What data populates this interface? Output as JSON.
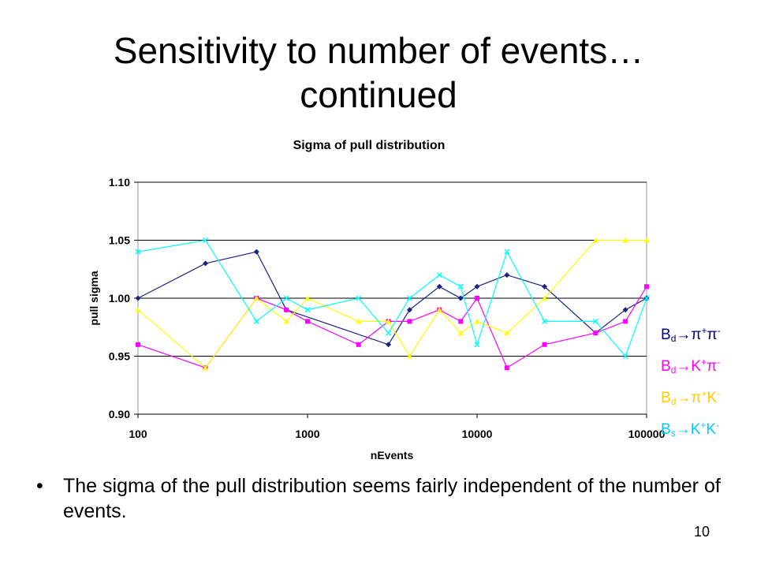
{
  "slide": {
    "title_line1": "Sensitivity to number of events…",
    "title_line2": "continued",
    "bullet": "The sigma of the pull distribution seems fairly independent of the number of events.",
    "bullet_marker": "•",
    "page_number": "10"
  },
  "legend": [
    {
      "particle": "B",
      "sub": "d",
      "arrow": "→",
      "decay": [
        {
          "t": "π",
          "sup": "+"
        },
        {
          "t": "π",
          "sup": "-"
        }
      ],
      "color": "#000080"
    },
    {
      "particle": "B",
      "sub": "d",
      "arrow": "→",
      "decay": [
        {
          "t": "K",
          "sup": "+"
        },
        {
          "t": "π",
          "sup": "-"
        }
      ],
      "color": "#ff00ff"
    },
    {
      "particle": "B",
      "sub": "d",
      "arrow": "→",
      "decay": [
        {
          "t": "π",
          "sup": "+"
        },
        {
          "t": "K",
          "sup": "-"
        }
      ],
      "color": "#ffcc00"
    },
    {
      "particle": "B",
      "sub": "s",
      "arrow": "→",
      "decay": [
        {
          "t": "K",
          "sup": "+"
        },
        {
          "t": "K",
          "sup": "-"
        }
      ],
      "color": "#00ccff"
    }
  ],
  "chart_data": {
    "type": "line",
    "title": "Sigma of pull distribution",
    "xlabel": "nEvents",
    "ylabel": "pull sigma",
    "xscale": "log",
    "xlim": [
      100,
      100000
    ],
    "ylim": [
      0.9,
      1.1
    ],
    "x_ticks": [
      "100",
      "1000",
      "10000",
      "100000"
    ],
    "y_ticks": [
      "0.90",
      "0.95",
      "1.00",
      "1.05",
      "1.10"
    ],
    "grid": "horizontal",
    "legend_position": "right",
    "series": [
      {
        "color": "#1a237e",
        "marker": "diamond",
        "x": [
          100,
          250,
          500,
          750,
          3000,
          4000,
          6000,
          8000,
          10000,
          15000,
          25000,
          50000,
          75000,
          100000
        ],
        "y": [
          1.0,
          1.03,
          1.04,
          0.99,
          0.96,
          0.99,
          1.01,
          1.0,
          1.01,
          1.02,
          1.01,
          0.97,
          0.99,
          1.0
        ]
      },
      {
        "color": "#ff00ff",
        "marker": "square",
        "x": [
          100,
          250,
          500,
          750,
          1000,
          2000,
          3000,
          4000,
          6000,
          8000,
          10000,
          15000,
          25000,
          50000,
          75000,
          100000
        ],
        "y": [
          0.96,
          0.94,
          1.0,
          0.99,
          0.98,
          0.96,
          0.98,
          0.98,
          0.99,
          0.98,
          1.0,
          0.94,
          0.96,
          0.97,
          0.98,
          1.01
        ]
      },
      {
        "color": "#ffff00",
        "marker": "triangle",
        "x": [
          100,
          250,
          500,
          750,
          1000,
          2000,
          3000,
          4000,
          6000,
          8000,
          10000,
          15000,
          25000,
          50000,
          75000,
          100000
        ],
        "y": [
          0.99,
          0.94,
          1.0,
          0.98,
          1.0,
          0.98,
          0.98,
          0.95,
          0.99,
          0.97,
          0.98,
          0.97,
          1.0,
          1.05,
          1.05,
          1.05
        ]
      },
      {
        "color": "#00ffff",
        "marker": "x",
        "x": [
          100,
          250,
          500,
          750,
          1000,
          2000,
          3000,
          4000,
          6000,
          8000,
          10000,
          15000,
          25000,
          50000,
          75000,
          100000
        ],
        "y": [
          1.04,
          1.05,
          0.98,
          1.0,
          0.99,
          1.0,
          0.97,
          1.0,
          1.02,
          1.01,
          0.96,
          1.04,
          0.98,
          0.98,
          0.95,
          1.0
        ]
      }
    ]
  }
}
